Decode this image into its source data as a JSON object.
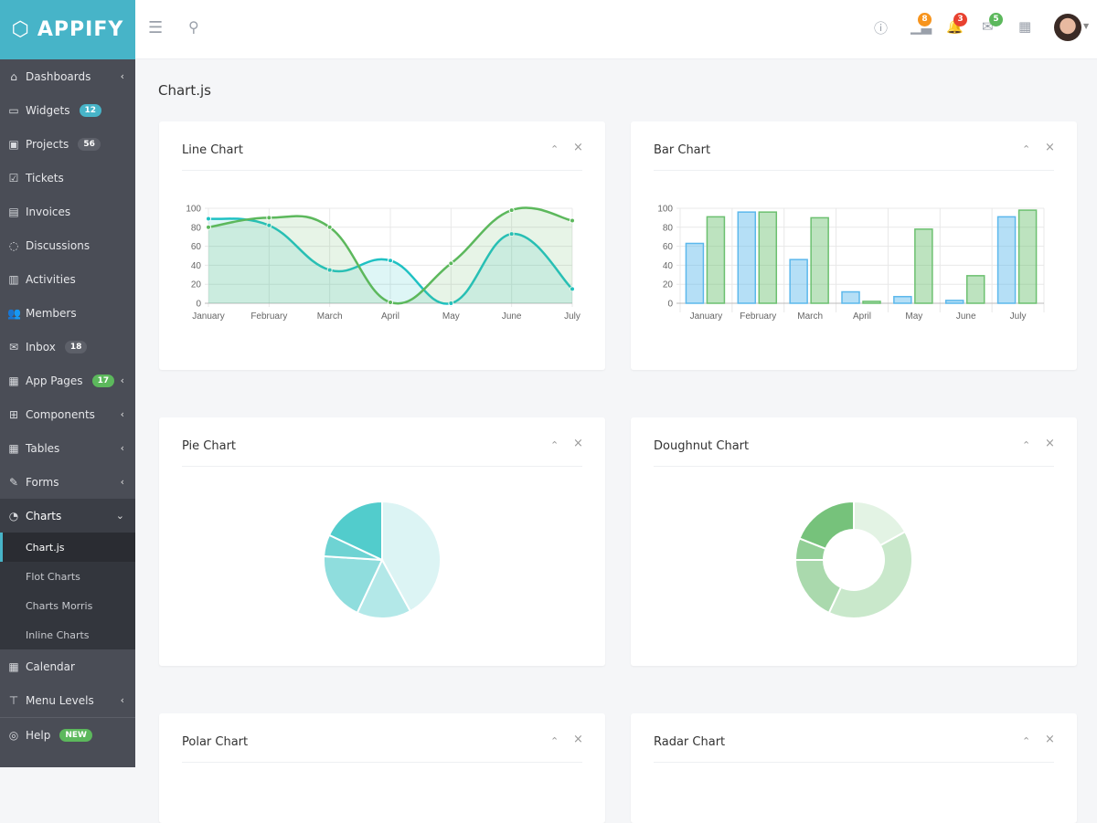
{
  "app": {
    "name": "APPIFY"
  },
  "sidebar": {
    "items": [
      {
        "label": "Dashboards",
        "icon": "home-icon",
        "chevron": true
      },
      {
        "label": "Widgets",
        "icon": "inbox-tray-icon",
        "badge": "12",
        "badge_color": "#47b4c8"
      },
      {
        "label": "Projects",
        "icon": "briefcase-icon",
        "badge": "56",
        "badge_color": "#5d6069"
      },
      {
        "label": "Tickets",
        "icon": "checkbox-icon"
      },
      {
        "label": "Invoices",
        "icon": "document-icon"
      },
      {
        "label": "Discussions",
        "icon": "chat-icon"
      },
      {
        "label": "Activities",
        "icon": "presentation-icon"
      },
      {
        "label": "Members",
        "icon": "users-icon"
      },
      {
        "label": "Inbox",
        "icon": "envelope-icon",
        "badge": "18",
        "badge_color": "#5d6069"
      },
      {
        "label": "App Pages",
        "icon": "building-icon",
        "badge": "17",
        "badge_color": "#5cb85c",
        "chevron": true
      },
      {
        "label": "Components",
        "icon": "puzzle-icon",
        "chevron": true
      },
      {
        "label": "Tables",
        "icon": "table-icon",
        "chevron": true
      },
      {
        "label": "Forms",
        "icon": "edit-icon",
        "chevron": true
      },
      {
        "label": "Charts",
        "icon": "pie-chart-icon",
        "open": true
      }
    ],
    "sub_items": [
      {
        "label": "Chart.js",
        "active": true
      },
      {
        "label": "Flot Charts"
      },
      {
        "label": "Charts Morris"
      },
      {
        "label": "Inline Charts"
      }
    ],
    "after_items": [
      {
        "label": "Calendar",
        "icon": "calendar-icon"
      },
      {
        "label": "Menu Levels",
        "icon": "sitemap-icon",
        "chevron": true
      }
    ],
    "help": {
      "label": "Help",
      "badge": "NEW",
      "badge_color": "#5cb85c"
    }
  },
  "header": {
    "notifications": [
      {
        "icon": "info-icon"
      },
      {
        "icon": "bar-chart-icon",
        "badge": "8",
        "color": "#f7941d"
      },
      {
        "icon": "bell-icon",
        "badge": "3",
        "color": "#e8412f"
      },
      {
        "icon": "envelope-icon",
        "badge": "5",
        "color": "#5cb85c"
      },
      {
        "icon": "grid-icon"
      }
    ]
  },
  "page": {
    "title": "Chart.js"
  },
  "cards": [
    {
      "title": "Line Chart"
    },
    {
      "title": "Bar Chart"
    },
    {
      "title": "Pie Chart"
    },
    {
      "title": "Doughnut Chart"
    },
    {
      "title": "Polar Chart"
    },
    {
      "title": "Radar Chart"
    }
  ],
  "card_controls": {
    "collapse": "⌃",
    "close": "×"
  },
  "chart_data": [
    {
      "type": "line",
      "categories": [
        "January",
        "February",
        "March",
        "April",
        "May",
        "June",
        "July"
      ],
      "ylim": [
        0,
        100
      ],
      "yticks": [
        0,
        20,
        40,
        60,
        80,
        100
      ],
      "grid": true,
      "series": [
        {
          "values": [
            89,
            82,
            35,
            45,
            0,
            73,
            15
          ],
          "color": "#1fc1c3"
        },
        {
          "values": [
            80,
            90,
            80,
            1,
            42,
            98,
            87
          ],
          "color": "#5cb85c"
        }
      ]
    },
    {
      "type": "bar",
      "categories": [
        "January",
        "February",
        "March",
        "April",
        "May",
        "June",
        "July"
      ],
      "ylim": [
        0,
        100
      ],
      "yticks": [
        0,
        20,
        40,
        60,
        80,
        100
      ],
      "grid": true,
      "series": [
        {
          "values": [
            63,
            96,
            46,
            12,
            7,
            3,
            91
          ],
          "color": "#5cb8ec"
        },
        {
          "values": [
            91,
            96,
            90,
            2,
            78,
            29,
            98
          ],
          "color": "#6cc070"
        }
      ]
    },
    {
      "type": "pie",
      "values": [
        42,
        15,
        19,
        6,
        18
      ],
      "colors": [
        "#dcf4f4",
        "#b3e8e8",
        "#8fdddd",
        "#6ed3d3",
        "#52cccc"
      ]
    },
    {
      "type": "doughnut",
      "values": [
        17,
        40,
        18,
        6,
        19
      ],
      "colors": [
        "#e3f3e4",
        "#c9e8cb",
        "#aad9ad",
        "#92cf96",
        "#76c27b"
      ]
    }
  ]
}
